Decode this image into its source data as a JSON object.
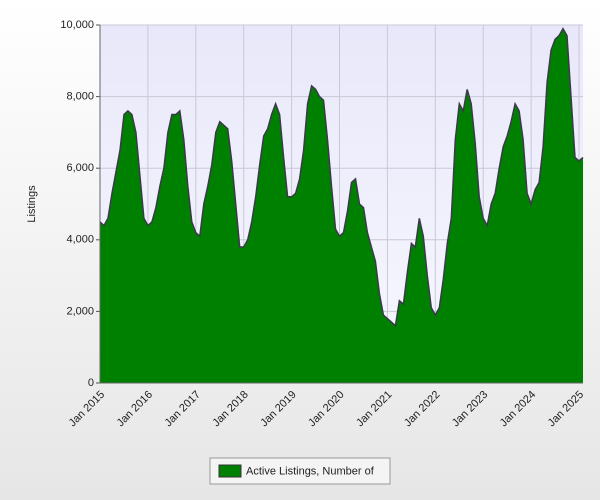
{
  "chart_data": {
    "type": "area",
    "y_label": "Listings",
    "categories": [
      "Jan 2015",
      null,
      null,
      null,
      null,
      null,
      null,
      null,
      null,
      null,
      null,
      null,
      "Jan 2016",
      null,
      null,
      null,
      null,
      null,
      null,
      null,
      null,
      null,
      null,
      null,
      "Jan 2017",
      null,
      null,
      null,
      null,
      null,
      null,
      null,
      null,
      null,
      null,
      null,
      "Jan 2018",
      null,
      null,
      null,
      null,
      null,
      null,
      null,
      null,
      null,
      null,
      null,
      "Jan 2019",
      null,
      null,
      null,
      null,
      null,
      null,
      null,
      null,
      null,
      null,
      null,
      "Jan 2020",
      null,
      null,
      null,
      null,
      null,
      null,
      null,
      null,
      null,
      null,
      null,
      "Jan 2021",
      null,
      null,
      null,
      null,
      null,
      null,
      null,
      null,
      null,
      null,
      null,
      "Jan 2022",
      null,
      null,
      null,
      null,
      null,
      null,
      null,
      null,
      null,
      null,
      null,
      "Jan 2023",
      null,
      null,
      null,
      null,
      null,
      null,
      null,
      null,
      null,
      null,
      null,
      "Jan 2024",
      null,
      null,
      null,
      null,
      null,
      null,
      null,
      null,
      null,
      null,
      null,
      "Jan 2025",
      null
    ],
    "series": [
      {
        "name": "Active Listings, Number of",
        "color": "#008000",
        "line_color": "#3a3a4a",
        "values": [
          4500,
          4400,
          4600,
          5300,
          5900,
          6500,
          7500,
          7600,
          7500,
          7000,
          5800,
          4600,
          4400,
          4500,
          4900,
          5500,
          6000,
          7000,
          7500,
          7500,
          7600,
          6800,
          5500,
          4500,
          4200,
          4100,
          5000,
          5500,
          6100,
          7000,
          7300,
          7200,
          7100,
          6200,
          5000,
          3800,
          3800,
          4000,
          4500,
          5200,
          6100,
          6900,
          7100,
          7500,
          7800,
          7500,
          6300,
          5200,
          5200,
          5300,
          5700,
          6500,
          7800,
          8300,
          8200,
          8000,
          7900,
          6800,
          5500,
          4300,
          4100,
          4200,
          4800,
          5600,
          5700,
          5000,
          4900,
          4200,
          3800,
          3400,
          2500,
          1900,
          1800,
          1700,
          1600,
          2300,
          2200,
          3100,
          3900,
          3800,
          4600,
          4100,
          3000,
          2100,
          1900,
          2100,
          2900,
          3900,
          4600,
          6800,
          7800,
          7600,
          8200,
          7800,
          6700,
          5200,
          4600,
          4400,
          5000,
          5300,
          6000,
          6600,
          6900,
          7300,
          7800,
          7600,
          6800,
          5300,
          5000,
          5400,
          5600,
          6600,
          8400,
          9300,
          9600,
          9700,
          9900,
          9700,
          8000,
          6300,
          6200,
          6300
        ]
      }
    ],
    "ylim": [
      0,
      10000
    ],
    "yticks": [
      0,
      {
        "value": 2000,
        "label": "2,000"
      },
      {
        "value": 4000,
        "label": "4,000"
      },
      {
        "value": 6000,
        "label": "6,000"
      },
      {
        "value": 8000,
        "label": "8,000"
      },
      {
        "value": 10000,
        "label": "10,000"
      }
    ],
    "grid": true,
    "legend": "bottom"
  }
}
